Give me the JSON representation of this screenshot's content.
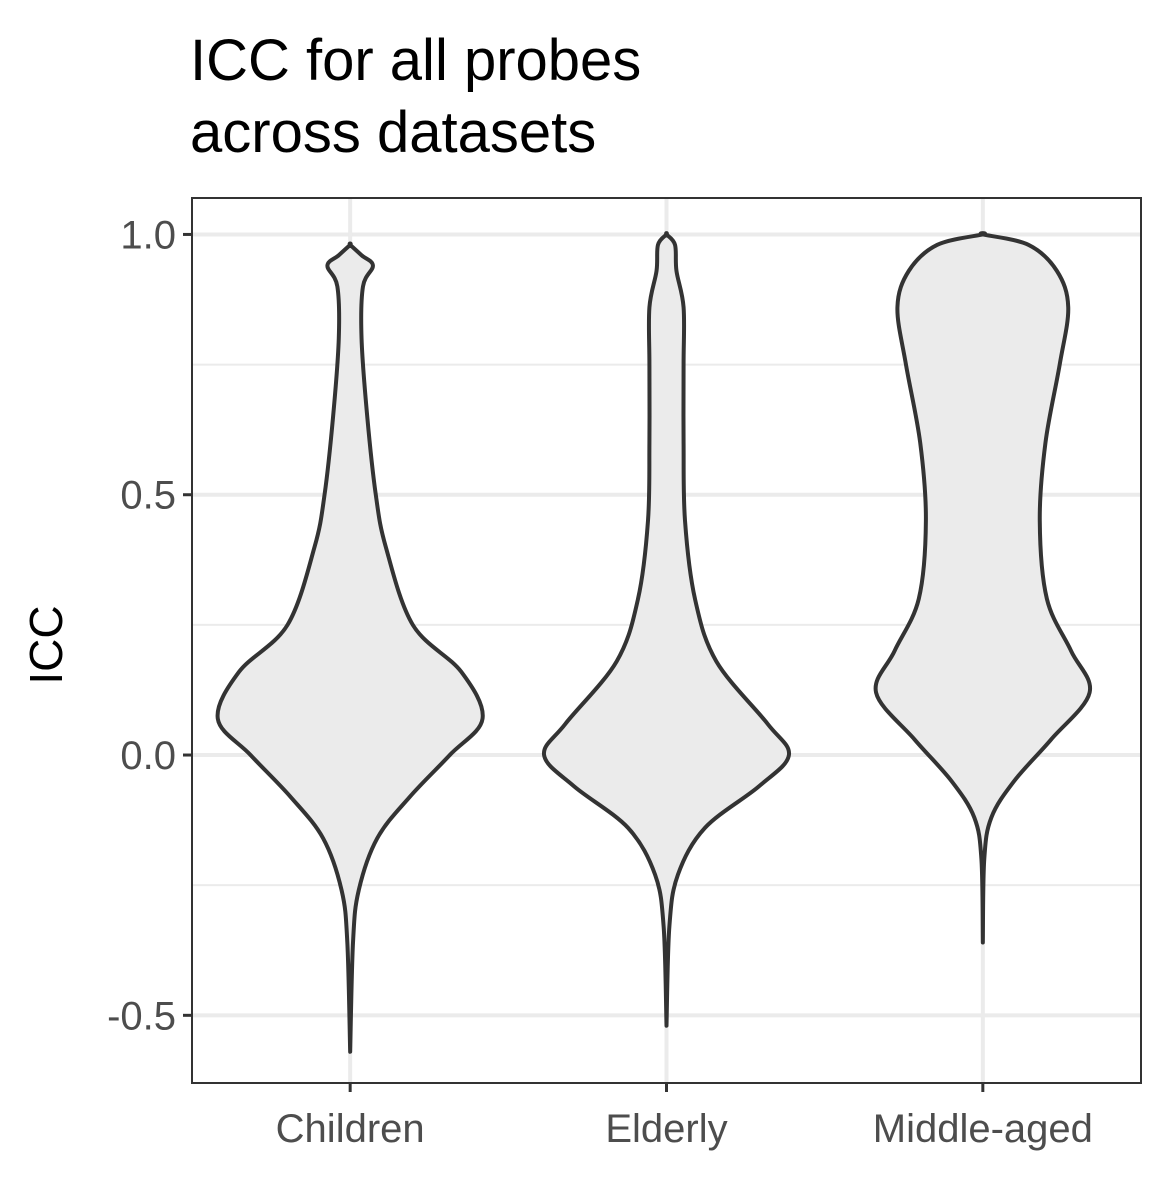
{
  "chart_data": {
    "type": "violin",
    "title_lines": [
      "ICC for all probes",
      "across datasets"
    ],
    "xlabel": "",
    "ylabel": "ICC",
    "categories": [
      "Children",
      "Elderly",
      "Middle-aged"
    ],
    "ylim": [
      -0.63,
      1.07
    ],
    "yticks": [
      -0.5,
      0.0,
      0.5,
      1.0
    ],
    "ytick_labels": [
      "-0.5",
      "0.0",
      "0.5",
      "1.0"
    ],
    "minor_yticks": [
      -0.25,
      0.25,
      0.75
    ],
    "grid": true,
    "legend": "none",
    "fill_color": "#ebebeb",
    "outline_color": "#333333",
    "violins": [
      {
        "category": "Children",
        "min": -0.57,
        "max": 0.98,
        "profile": [
          [
            -0.57,
            0.0
          ],
          [
            -0.36,
            0.02
          ],
          [
            -0.26,
            0.06
          ],
          [
            -0.16,
            0.19
          ],
          [
            -0.08,
            0.42
          ],
          [
            0.0,
            0.7
          ],
          [
            0.07,
            0.93
          ],
          [
            0.16,
            0.78
          ],
          [
            0.25,
            0.44
          ],
          [
            0.4,
            0.25
          ],
          [
            0.5,
            0.18
          ],
          [
            0.65,
            0.12
          ],
          [
            0.8,
            0.08
          ],
          [
            0.9,
            0.09
          ],
          [
            0.94,
            0.16
          ],
          [
            0.96,
            0.08
          ],
          [
            0.98,
            0.0
          ]
        ]
      },
      {
        "category": "Elderly",
        "min": -0.52,
        "max": 1.0,
        "profile": [
          [
            -0.52,
            0.0
          ],
          [
            -0.33,
            0.02
          ],
          [
            -0.23,
            0.08
          ],
          [
            -0.14,
            0.27
          ],
          [
            -0.06,
            0.65
          ],
          [
            0.0,
            0.86
          ],
          [
            0.06,
            0.71
          ],
          [
            0.18,
            0.35
          ],
          [
            0.3,
            0.2
          ],
          [
            0.45,
            0.13
          ],
          [
            0.6,
            0.12
          ],
          [
            0.75,
            0.12
          ],
          [
            0.86,
            0.12
          ],
          [
            0.93,
            0.07
          ],
          [
            0.98,
            0.06
          ],
          [
            1.0,
            0.0
          ]
        ]
      },
      {
        "category": "Middle-aged",
        "min": -0.36,
        "max": 1.0,
        "profile": [
          [
            -0.36,
            0.0
          ],
          [
            -0.2,
            0.01
          ],
          [
            -0.12,
            0.06
          ],
          [
            -0.05,
            0.22
          ],
          [
            0.03,
            0.48
          ],
          [
            0.12,
            0.75
          ],
          [
            0.2,
            0.62
          ],
          [
            0.3,
            0.45
          ],
          [
            0.45,
            0.4
          ],
          [
            0.6,
            0.44
          ],
          [
            0.75,
            0.54
          ],
          [
            0.86,
            0.6
          ],
          [
            0.93,
            0.52
          ],
          [
            0.98,
            0.32
          ],
          [
            1.0,
            0.0
          ]
        ]
      }
    ]
  }
}
